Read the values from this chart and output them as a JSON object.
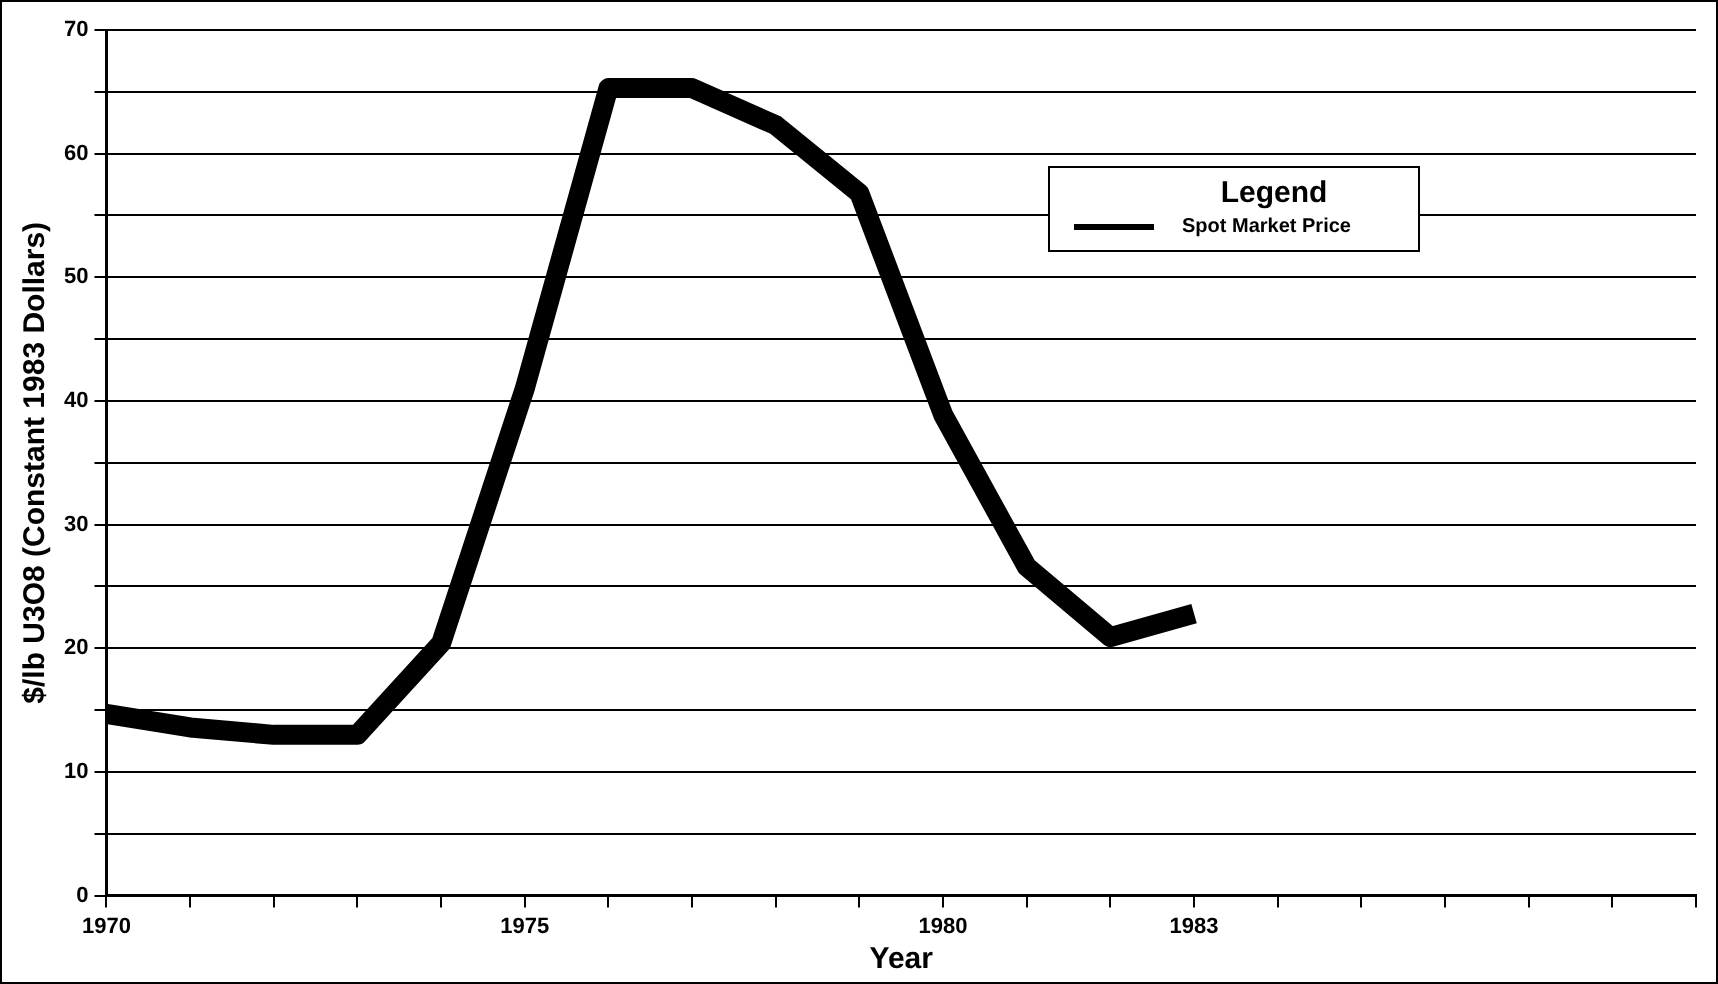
{
  "chart_data": {
    "type": "line",
    "xlabel": "Year",
    "ylabel": "$/lb U3O8 (Constant 1983 Dollars)",
    "legend_title": "Legend",
    "legend": "top right",
    "grid": "y",
    "marker": "none",
    "line_style": "solid",
    "x": [
      1970,
      1971,
      1972,
      1973,
      1974,
      1975,
      1976,
      1977,
      1978,
      1979,
      1980,
      1981,
      1982,
      1983
    ],
    "series": [
      {
        "name": "Spot Market Price",
        "color": "#000000",
        "values": [
          14.7,
          13.6,
          13.0,
          13.0,
          20.4,
          41,
          65.3,
          65.3,
          62.3,
          56.8,
          38.9,
          26.6,
          20.9,
          22.8
        ]
      }
    ],
    "xlim": [
      1970,
      1989
    ],
    "xticks": [
      1970,
      {
        "value": 1971,
        "label": null
      },
      {
        "value": 1972,
        "label": null
      },
      {
        "value": 1973,
        "label": null
      },
      {
        "value": 1974,
        "label": null
      },
      1975,
      {
        "value": 1976,
        "label": null
      },
      {
        "value": 1977,
        "label": null
      },
      {
        "value": 1978,
        "label": null
      },
      {
        "value": 1979,
        "label": null
      },
      1980,
      {
        "value": 1981,
        "label": null
      },
      {
        "value": 1982,
        "label": null
      },
      1983,
      {
        "value": 1984,
        "label": null
      },
      {
        "value": 1985,
        "label": null
      },
      {
        "value": 1986,
        "label": null
      },
      {
        "value": 1987,
        "label": null
      },
      {
        "value": 1988,
        "label": null
      },
      {
        "value": 1989,
        "label": null
      }
    ],
    "ylim": [
      0,
      70
    ],
    "yticks": [
      0,
      {
        "value": 5,
        "label": null
      },
      10,
      {
        "value": 15,
        "label": null
      },
      20,
      {
        "value": 25,
        "label": null
      },
      30,
      {
        "value": 35,
        "label": null
      },
      40,
      {
        "value": 45,
        "label": null
      },
      50,
      {
        "value": 55,
        "label": null
      },
      60,
      {
        "value": 65,
        "label": null
      },
      70
    ]
  }
}
